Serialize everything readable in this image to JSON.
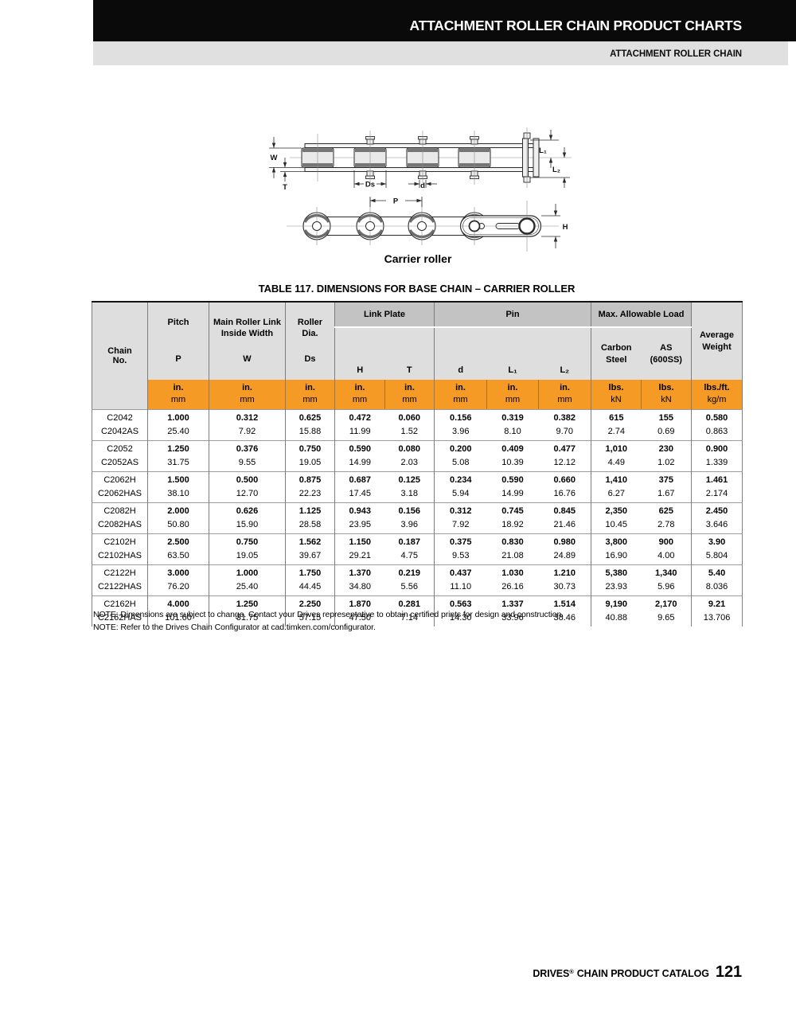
{
  "page": {
    "header_title": "ATTACHMENT ROLLER CHAIN PRODUCT CHARTS",
    "subheader": "ATTACHMENT ROLLER CHAIN"
  },
  "diagram": {
    "caption": "Carrier roller",
    "labels": {
      "w": "W",
      "t": "T",
      "ds": "Ds",
      "d": "d",
      "p": "P",
      "l1": "L₁",
      "l2": "L₂",
      "h": "H"
    }
  },
  "table": {
    "title": "TABLE 117.  DIMENSIONS FOR BASE CHAIN – CARRIER ROLLER",
    "headers": {
      "chain_no": "Chain\nNo.",
      "pitch": {
        "label": "Pitch",
        "symbol": "P"
      },
      "inside_width": {
        "label": "Main Roller Link\nInside Width",
        "symbol": "W"
      },
      "roller_dia": {
        "label": "Roller\nDia.",
        "symbol": "Ds"
      },
      "link_plate": {
        "label": "Link Plate",
        "sub": [
          "H",
          "T"
        ]
      },
      "pin": {
        "label": "Pin",
        "sub": [
          "d",
          "L₁",
          "L₂"
        ]
      },
      "max_load": {
        "label": "Max. Allowable Load",
        "sub": [
          "Carbon\nSteel",
          "AS\n(600SS)"
        ]
      },
      "avg_weight": "Average\nWeight"
    },
    "units": [
      [
        "in.",
        "mm"
      ],
      [
        "in.",
        "mm"
      ],
      [
        "in.",
        "mm"
      ],
      [
        "in.",
        "mm"
      ],
      [
        "in.",
        "mm"
      ],
      [
        "in.",
        "mm"
      ],
      [
        "in.",
        "mm"
      ],
      [
        "in.",
        "mm"
      ],
      [
        "lbs.",
        "kN"
      ],
      [
        "lbs.",
        "kN"
      ],
      [
        "lbs./ft.",
        "kg/m"
      ]
    ],
    "rows": [
      {
        "chain": [
          "C2042",
          "C2042AS"
        ],
        "values": [
          [
            "1.000",
            "25.40"
          ],
          [
            "0.312",
            "7.92"
          ],
          [
            "0.625",
            "15.88"
          ],
          [
            "0.472",
            "11.99"
          ],
          [
            "0.060",
            "1.52"
          ],
          [
            "0.156",
            "3.96"
          ],
          [
            "0.319",
            "8.10"
          ],
          [
            "0.382",
            "9.70"
          ],
          [
            "615",
            "2.74"
          ],
          [
            "155",
            "0.69"
          ],
          [
            "0.580",
            "0.863"
          ]
        ]
      },
      {
        "chain": [
          "C2052",
          "C2052AS"
        ],
        "values": [
          [
            "1.250",
            "31.75"
          ],
          [
            "0.376",
            "9.55"
          ],
          [
            "0.750",
            "19.05"
          ],
          [
            "0.590",
            "14.99"
          ],
          [
            "0.080",
            "2.03"
          ],
          [
            "0.200",
            "5.08"
          ],
          [
            "0.409",
            "10.39"
          ],
          [
            "0.477",
            "12.12"
          ],
          [
            "1,010",
            "4.49"
          ],
          [
            "230",
            "1.02"
          ],
          [
            "0.900",
            "1.339"
          ]
        ]
      },
      {
        "chain": [
          "C2062H",
          "C2062HAS"
        ],
        "values": [
          [
            "1.500",
            "38.10"
          ],
          [
            "0.500",
            "12.70"
          ],
          [
            "0.875",
            "22.23"
          ],
          [
            "0.687",
            "17.45"
          ],
          [
            "0.125",
            "3.18"
          ],
          [
            "0.234",
            "5.94"
          ],
          [
            "0.590",
            "14.99"
          ],
          [
            "0.660",
            "16.76"
          ],
          [
            "1,410",
            "6.27"
          ],
          [
            "375",
            "1.67"
          ],
          [
            "1.461",
            "2.174"
          ]
        ]
      },
      {
        "chain": [
          "C2082H",
          "C2082HAS"
        ],
        "values": [
          [
            "2.000",
            "50.80"
          ],
          [
            "0.626",
            "15.90"
          ],
          [
            "1.125",
            "28.58"
          ],
          [
            "0.943",
            "23.95"
          ],
          [
            "0.156",
            "3.96"
          ],
          [
            "0.312",
            "7.92"
          ],
          [
            "0.745",
            "18.92"
          ],
          [
            "0.845",
            "21.46"
          ],
          [
            "2,350",
            "10.45"
          ],
          [
            "625",
            "2.78"
          ],
          [
            "2.450",
            "3.646"
          ]
        ]
      },
      {
        "chain": [
          "C2102H",
          "C2102HAS"
        ],
        "values": [
          [
            "2.500",
            "63.50"
          ],
          [
            "0.750",
            "19.05"
          ],
          [
            "1.562",
            "39.67"
          ],
          [
            "1.150",
            "29.21"
          ],
          [
            "0.187",
            "4.75"
          ],
          [
            "0.375",
            "9.53"
          ],
          [
            "0.830",
            "21.08"
          ],
          [
            "0.980",
            "24.89"
          ],
          [
            "3,800",
            "16.90"
          ],
          [
            "900",
            "4.00"
          ],
          [
            "3.90",
            "5.804"
          ]
        ]
      },
      {
        "chain": [
          "C2122H",
          "C2122HAS"
        ],
        "values": [
          [
            "3.000",
            "76.20"
          ],
          [
            "1.000",
            "25.40"
          ],
          [
            "1.750",
            "44.45"
          ],
          [
            "1.370",
            "34.80"
          ],
          [
            "0.219",
            "5.56"
          ],
          [
            "0.437",
            "11.10"
          ],
          [
            "1.030",
            "26.16"
          ],
          [
            "1.210",
            "30.73"
          ],
          [
            "5,380",
            "23.93"
          ],
          [
            "1,340",
            "5.96"
          ],
          [
            "5.40",
            "8.036"
          ]
        ]
      },
      {
        "chain": [
          "C2162H",
          "C2162HAS"
        ],
        "values": [
          [
            "4.000",
            "101.60"
          ],
          [
            "1.250",
            "31.75"
          ],
          [
            "2.250",
            "57.15"
          ],
          [
            "1.870",
            "47.50"
          ],
          [
            "0.281",
            "7.14"
          ],
          [
            "0.563",
            "14.30"
          ],
          [
            "1.337",
            "33.96"
          ],
          [
            "1.514",
            "38.46"
          ],
          [
            "9,190",
            "40.88"
          ],
          [
            "2,170",
            "9.65"
          ],
          [
            "9.21",
            "13.706"
          ]
        ]
      }
    ]
  },
  "notes": [
    "NOTE: Dimensions are subject to change. Contact your Drives representative to obtain certified prints for design and construction.",
    "NOTE: Refer to the Drives Chain Configurator at cad.timken.com/configurator."
  ],
  "footer": {
    "brand": "DRIVES",
    "reg": "®",
    "label": "CHAIN PRODUCT CATALOG",
    "page": "121"
  }
}
